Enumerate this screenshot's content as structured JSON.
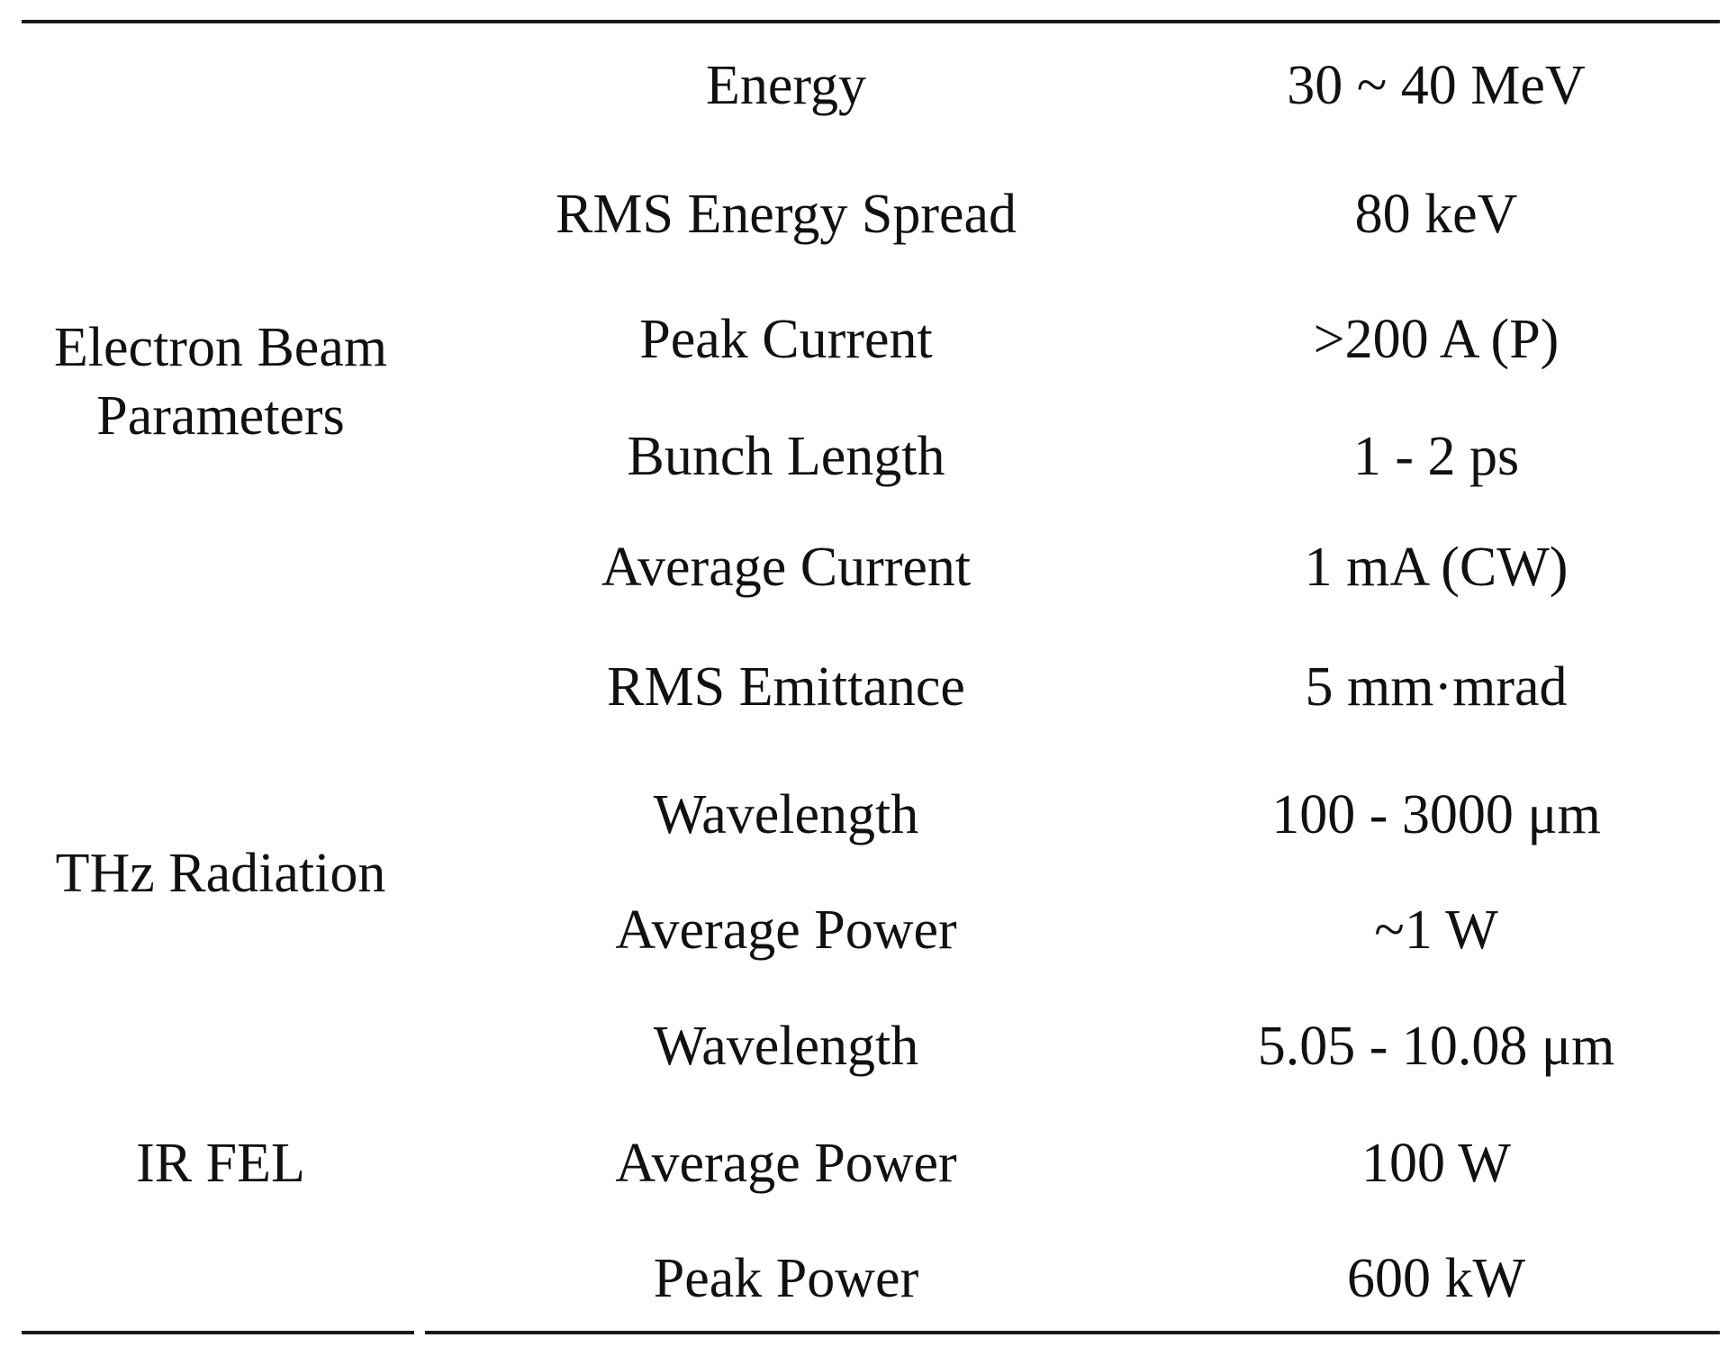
{
  "table": {
    "groups": [
      {
        "lines": [
          "Electron Beam",
          "Parameters"
        ]
      },
      {
        "lines": [
          "THz Radiation"
        ]
      },
      {
        "lines": [
          "IR FEL"
        ]
      }
    ],
    "rows": [
      {
        "parameter": "Energy",
        "value": "30 ~ 40 MeV"
      },
      {
        "parameter": "RMS Energy Spread",
        "value": "80 keV"
      },
      {
        "parameter": "Peak Current",
        "value": ">200 A (P)"
      },
      {
        "parameter": "Bunch Length",
        "value": "1 - 2 ps"
      },
      {
        "parameter": "Average Current",
        "value": "1 mA (CW)"
      },
      {
        "parameter": "RMS Emittance",
        "value": "5 mm·mrad"
      },
      {
        "parameter": "Wavelength",
        "value": "100 - 3000 μm"
      },
      {
        "parameter": "Average Power",
        "value": "~1 W"
      },
      {
        "parameter": "Wavelength",
        "value": "5.05 - 10.08 μm"
      },
      {
        "parameter": "Average Power",
        "value": "100 W"
      },
      {
        "parameter": "Peak Power",
        "value": "600 kW"
      }
    ]
  }
}
